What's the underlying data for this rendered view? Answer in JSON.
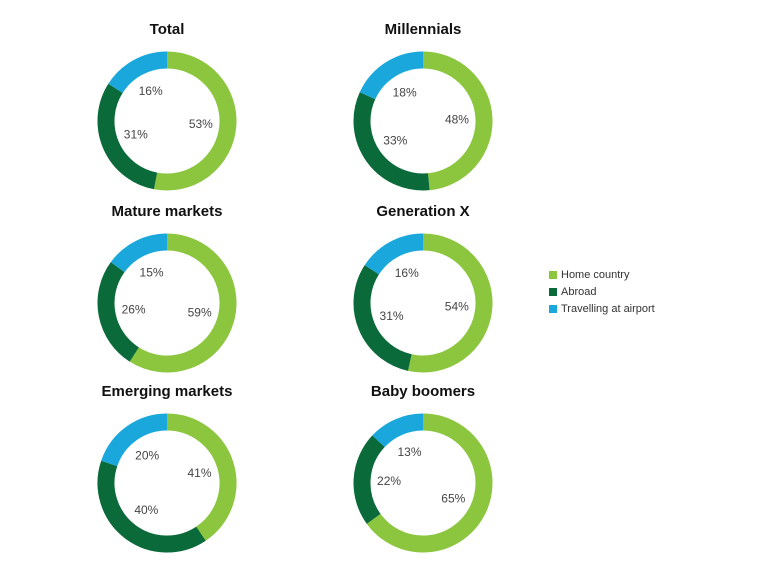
{
  "colors": {
    "home_country": "#8cc63f",
    "abroad": "#0b6a3a",
    "travelling_at_airport": "#1aa8dc"
  },
  "legend": [
    {
      "label": "Home country",
      "color_key": "home_country"
    },
    {
      "label": "Abroad",
      "color_key": "abroad"
    },
    {
      "label": "Travelling at airport",
      "color_key": "travelling_at_airport"
    }
  ],
  "chart_data": [
    {
      "type": "pie",
      "title": "Total",
      "categories": [
        "Home country",
        "Abroad",
        "Travelling at airport"
      ],
      "values": [
        53,
        31,
        16
      ],
      "labels": [
        "53%",
        "31%",
        "16%"
      ]
    },
    {
      "type": "pie",
      "title": "Millennials",
      "categories": [
        "Home country",
        "Abroad",
        "Travelling at airport"
      ],
      "values": [
        48,
        33,
        18
      ],
      "labels": [
        "48%",
        "33%",
        "18%"
      ]
    },
    {
      "type": "pie",
      "title": "Mature markets",
      "categories": [
        "Home country",
        "Abroad",
        "Travelling at airport"
      ],
      "values": [
        59,
        26,
        15
      ],
      "labels": [
        "59%",
        "26%",
        "15%"
      ]
    },
    {
      "type": "pie",
      "title": "Generation X",
      "categories": [
        "Home country",
        "Abroad",
        "Travelling at airport"
      ],
      "values": [
        54,
        31,
        16
      ],
      "labels": [
        "54%",
        "31%",
        "16%"
      ]
    },
    {
      "type": "pie",
      "title": "Emerging markets",
      "categories": [
        "Home country",
        "Abroad",
        "Travelling at airport"
      ],
      "values": [
        41,
        40,
        20
      ],
      "labels": [
        "41%",
        "40%",
        "20%"
      ]
    },
    {
      "type": "pie",
      "title": "Baby boomers",
      "categories": [
        "Home country",
        "Abroad",
        "Travelling at airport"
      ],
      "values": [
        65,
        22,
        13
      ],
      "labels": [
        "65%",
        "22%",
        "13%"
      ]
    }
  ]
}
